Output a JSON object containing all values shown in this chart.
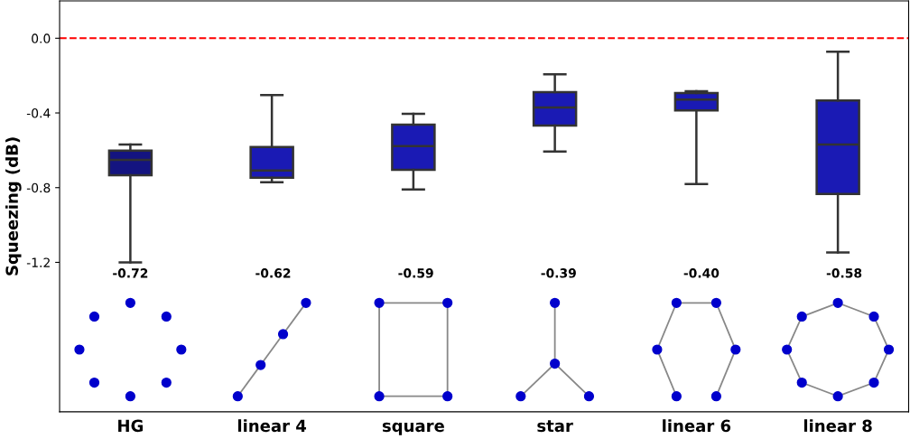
{
  "chart_data": {
    "type": "box",
    "ylabel": "Squeezing (dB)",
    "categories": [
      "HG",
      "linear 4",
      "square",
      "star",
      "linear 6",
      "linear 8"
    ],
    "boxes": [
      {
        "low": -1.2,
        "q1": -0.733,
        "median": -0.651,
        "q3": -0.602,
        "high": -0.569
      },
      {
        "low": -0.771,
        "q1": -0.747,
        "median": -0.708,
        "q3": -0.583,
        "high": -0.304
      },
      {
        "low": -0.81,
        "q1": -0.704,
        "median": -0.578,
        "q3": -0.463,
        "high": -0.405
      },
      {
        "low": -0.607,
        "q1": -0.467,
        "median": -0.371,
        "q3": -0.289,
        "high": -0.193
      },
      {
        "low": -0.781,
        "q1": -0.386,
        "median": -0.328,
        "q3": -0.294,
        "high": -0.284
      },
      {
        "low": -1.147,
        "q1": -0.834,
        "median": -0.569,
        "q3": -0.333,
        "high": -0.072
      }
    ],
    "colors": [
      "#141480",
      "#1a1ab4",
      "#1a1ab4",
      "#1a1ab4",
      "#1a1ab4",
      "#1a1ab4"
    ],
    "value_labels": [
      "-0.72",
      "-0.62",
      "-0.59",
      "-0.39",
      "-0.40",
      "-0.58"
    ],
    "ylim": [
      -2.0,
      0.2
    ],
    "yticks": [
      {
        "value": 0,
        "label": "0.0"
      },
      {
        "value": -0.4,
        "label": "-0.4"
      },
      {
        "value": -0.8,
        "label": "-0.8"
      },
      {
        "value": -1.2,
        "label": "-1.2"
      }
    ],
    "ref_lines": [
      {
        "axis": "y",
        "value": 0,
        "color": "#ff0000",
        "line_style": "dashed"
      }
    ],
    "grid": false,
    "legend": false
  }
}
